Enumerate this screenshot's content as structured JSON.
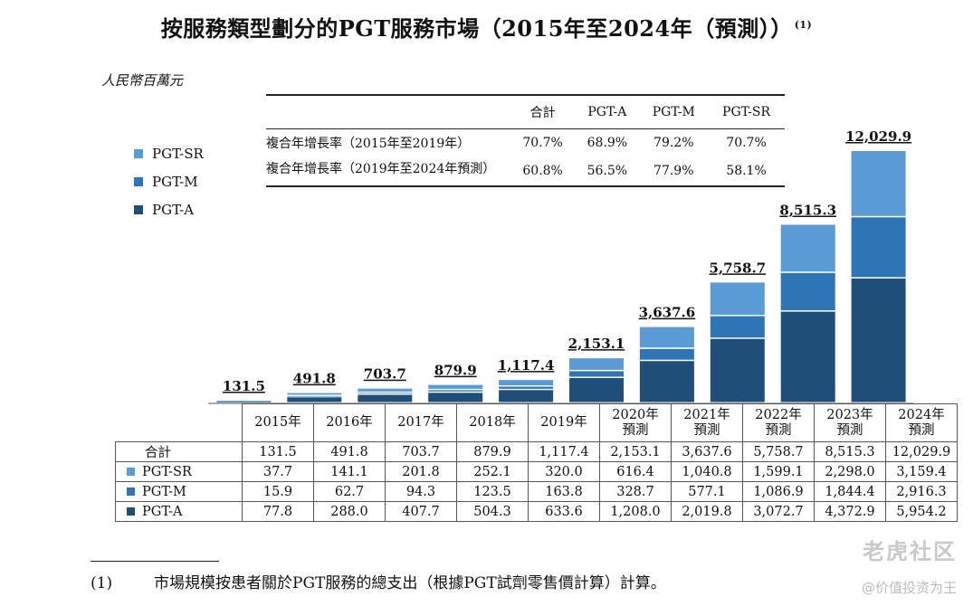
{
  "title": "按服務類型劃分的PGT服務市場（2015年至2024年（預測））",
  "title_note": "(1)",
  "unit": "人民幣百萬元",
  "colors": {
    "sr": "#5b9bd5",
    "m": "#2e75b6",
    "a": "#1f4e79"
  },
  "legend": [
    "PGT-SR",
    "PGT-M",
    "PGT-A"
  ],
  "cagr_table": {
    "headers": [
      "",
      "合計",
      "PGT-A",
      "PGT-M",
      "PGT-SR"
    ],
    "rows": [
      {
        "label": "複合年增長率（2015年至2019年）",
        "values": [
          "70.7%",
          "68.9%",
          "79.2%",
          "70.7%"
        ]
      },
      {
        "label": "複合年增長率（2019年至2024年預測）",
        "values": [
          "60.8%",
          "56.5%",
          "77.9%",
          "58.1%"
        ]
      }
    ]
  },
  "chart_data": {
    "type": "bar",
    "stacked": true,
    "categories": [
      "2015年",
      "2016年",
      "2017年",
      "2018年",
      "2019年",
      "2020年預測",
      "2021年預測",
      "2022年預測",
      "2023年預測",
      "2024年預測"
    ],
    "series": [
      {
        "name": "PGT-A",
        "values": [
          77.8,
          288.0,
          407.7,
          504.3,
          633.6,
          1208.0,
          2019.8,
          3072.7,
          4372.9,
          5954.2
        ]
      },
      {
        "name": "PGT-M",
        "values": [
          15.9,
          62.7,
          94.3,
          123.5,
          163.8,
          328.7,
          577.1,
          1086.9,
          1844.4,
          2916.3
        ]
      },
      {
        "name": "PGT-SR",
        "values": [
          37.7,
          141.1,
          201.8,
          252.1,
          320.0,
          616.4,
          1040.8,
          1599.1,
          2298.0,
          3159.4
        ]
      }
    ],
    "totals": [
      131.5,
      491.8,
      703.7,
      879.9,
      1117.4,
      2153.1,
      3637.6,
      5758.7,
      8515.3,
      12029.9
    ],
    "total_labels": [
      "131.5",
      "491.8",
      "703.7",
      "879.9",
      "1,117.4",
      "2,153.1",
      "3,637.6",
      "5,758.7",
      "8,515.3",
      "12,029.9"
    ],
    "ylim": [
      0,
      12029.9
    ]
  },
  "data_table": {
    "year_labels": [
      [
        "2015年",
        ""
      ],
      [
        "2016年",
        ""
      ],
      [
        "2017年",
        ""
      ],
      [
        "2018年",
        ""
      ],
      [
        "2019年",
        ""
      ],
      [
        "2020年",
        "預測"
      ],
      [
        "2021年",
        "預測"
      ],
      [
        "2022年",
        "預測"
      ],
      [
        "2023年",
        "預測"
      ],
      [
        "2024年",
        "預測"
      ]
    ],
    "rows": [
      {
        "label": "合計",
        "swatch": "",
        "values": [
          "131.5",
          "491.8",
          "703.7",
          "879.9",
          "1,117.4",
          "2,153.1",
          "3,637.6",
          "5,758.7",
          "8,515.3",
          "12,029.9"
        ]
      },
      {
        "label": "PGT-SR",
        "swatch": "sr",
        "values": [
          "37.7",
          "141.1",
          "201.8",
          "252.1",
          "320.0",
          "616.4",
          "1,040.8",
          "1,599.1",
          "2,298.0",
          "3,159.4"
        ]
      },
      {
        "label": "PGT-M",
        "swatch": "m",
        "values": [
          "15.9",
          "62.7",
          "94.3",
          "123.5",
          "163.8",
          "328.7",
          "577.1",
          "1,086.9",
          "1,844.4",
          "2,916.3"
        ]
      },
      {
        "label": "PGT-A",
        "swatch": "a",
        "values": [
          "77.8",
          "288.0",
          "407.7",
          "504.3",
          "633.6",
          "1,208.0",
          "2,019.8",
          "3,072.7",
          "4,372.9",
          "5,954.2"
        ]
      }
    ]
  },
  "footnote": {
    "num": "(1)",
    "text": "市場規模按患者關於PGT服務的總支出（根據PGT試劑零售價計算）計算。"
  },
  "watermark": {
    "line1": "老虎社区",
    "line2": "@价值投资为王"
  }
}
